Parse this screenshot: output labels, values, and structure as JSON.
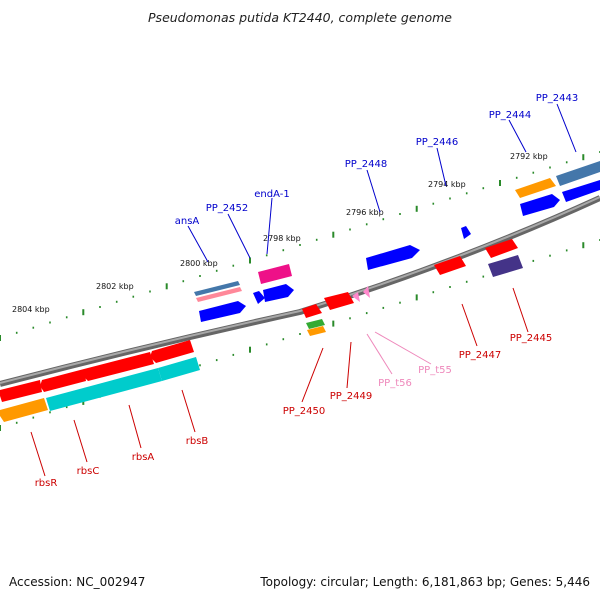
{
  "title": "Pseudomonas putida KT2440, complete genome",
  "footer": {
    "accession": "Accession: NC_002947",
    "summary": "Topology: circular; Length: 6,181,863 bp; Genes: 5,446"
  },
  "colors": {
    "backbone": "#808080",
    "tick": "#2a8a2a",
    "label_blue": "#0000cc",
    "label_red": "#cc0000",
    "label_pink": "#ee88bb",
    "red": "#ff0000",
    "blue": "#0000ff",
    "orange": "#ff9900",
    "cyan": "#00cccc",
    "magenta": "#ee1188",
    "steel": "#4477aa",
    "salmon": "#ff8899",
    "purple": "#443388",
    "pink": "#ff88cc",
    "green": "#33aa33"
  },
  "ruler_labels": [
    "2804 kbp",
    "2802 kbp",
    "2800 kbp",
    "2798 kbp",
    "2796 kbp",
    "2794 kbp",
    "2792 kbp"
  ],
  "gene_labels": {
    "ansA": "ansA",
    "PP_2452": "PP_2452",
    "endA_1": "endA-1",
    "PP_2448": "PP_2448",
    "PP_2446": "PP_2446",
    "PP_2444": "PP_2444",
    "PP_2443": "PP_2443",
    "rbsR": "rbsR",
    "rbsC": "rbsC",
    "rbsA": "rbsA",
    "rbsB": "rbsB",
    "PP_2450": "PP_2450",
    "PP_2449": "PP_2449",
    "PP_t56": "PP_t56",
    "PP_t55": "PP_t55",
    "PP_2447": "PP_2447",
    "PP_2445": "PP_2445"
  }
}
